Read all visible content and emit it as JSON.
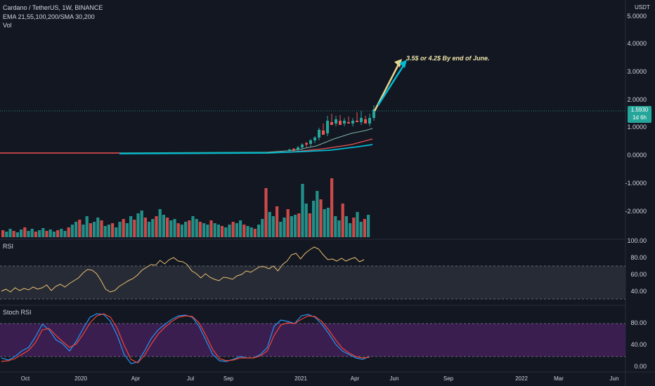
{
  "header": {
    "symbol_line": "Cardano / TetherUS, 1W, BINANCE",
    "indicators_line": "EMA 21,55,100,200/SMA 30,200",
    "vol_label": "Vol"
  },
  "currency_label": "USDT",
  "price_axis": [
    "5.0000",
    "4.0000",
    "3.0000",
    "2.0000",
    "1.0000",
    "0.0000",
    "-1.0000",
    "-2.0000"
  ],
  "current_price": {
    "value": "1.5930",
    "countdown": "1d 6h"
  },
  "annotation_text": "3.5$ or 4.2$ By end of June.",
  "rsi": {
    "title": "RSI",
    "axis": [
      "100.00",
      "80.00",
      "60.00",
      "40.00"
    ]
  },
  "stoch": {
    "title": "Stoch RSI",
    "axis": [
      "80.00",
      "40.00",
      "0.00"
    ]
  },
  "time_axis": [
    "Oct",
    "2020",
    "Apr",
    "Jul",
    "Sep",
    "2021",
    "Apr",
    "Jun",
    "Sep",
    "2022",
    "Mar",
    "Jun"
  ],
  "colors": {
    "bg": "#131722",
    "up": "#26a69a",
    "down": "#ef5350",
    "ema_cyan": "#00bcd4",
    "rsi_line": "#e8c170",
    "stoch_k": "#2196f3",
    "stoch_d": "#f44336",
    "stoch_band": "#5b2d7a",
    "arrow_yellow": "#e6d690"
  }
}
